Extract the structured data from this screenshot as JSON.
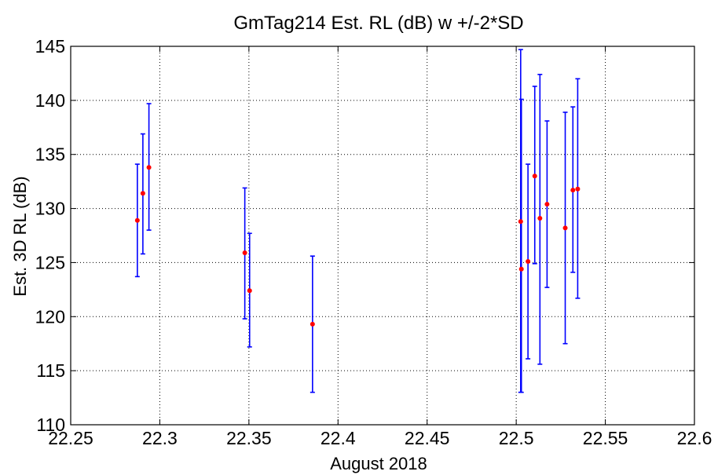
{
  "chart_data": {
    "type": "scatter",
    "title": "GmTag214 Est. RL (dB) w +/-2*SD",
    "xlabel": "August 2018",
    "ylabel": "Est. 3D RL (dB)",
    "xlim": [
      22.25,
      22.6
    ],
    "ylim": [
      110,
      145
    ],
    "x_ticks": [
      22.25,
      22.3,
      22.35,
      22.4,
      22.45,
      22.5,
      22.55,
      22.6
    ],
    "x_tick_labels": [
      "22.25",
      "22.3",
      "22.35",
      "22.4",
      "22.45",
      "22.5",
      "22.55",
      "22.6"
    ],
    "y_ticks": [
      110,
      115,
      120,
      125,
      130,
      135,
      140,
      145
    ],
    "y_tick_labels": [
      "110",
      "115",
      "120",
      "125",
      "130",
      "135",
      "140",
      "145"
    ],
    "grid": true,
    "series": [
      {
        "marker_color": "#ff0000",
        "errorbar_color": "#0000ff",
        "points": [
          {
            "x": 22.2874,
            "y": 128.9,
            "low": 123.7,
            "high": 134.1
          },
          {
            "x": 22.2905,
            "y": 131.4,
            "low": 125.8,
            "high": 136.9
          },
          {
            "x": 22.2939,
            "y": 133.8,
            "low": 128.0,
            "high": 139.7
          },
          {
            "x": 22.3477,
            "y": 125.9,
            "low": 119.8,
            "high": 131.9
          },
          {
            "x": 22.3504,
            "y": 122.4,
            "low": 117.2,
            "high": 127.7
          },
          {
            "x": 22.3857,
            "y": 119.3,
            "low": 113.0,
            "high": 125.6
          },
          {
            "x": 22.5025,
            "y": 128.8,
            "low": 113.0,
            "high": 144.7
          },
          {
            "x": 22.5029,
            "y": 124.4,
            "low": 113.0,
            "high": 140.1
          },
          {
            "x": 22.5066,
            "y": 125.1,
            "low": 116.1,
            "high": 134.1
          },
          {
            "x": 22.5104,
            "y": 133.0,
            "low": 124.9,
            "high": 141.3
          },
          {
            "x": 22.5133,
            "y": 129.1,
            "low": 115.6,
            "high": 142.4
          },
          {
            "x": 22.5173,
            "y": 130.4,
            "low": 122.7,
            "high": 138.1
          },
          {
            "x": 22.5275,
            "y": 128.2,
            "low": 117.5,
            "high": 138.9
          },
          {
            "x": 22.5318,
            "y": 131.7,
            "low": 124.1,
            "high": 139.4
          },
          {
            "x": 22.5345,
            "y": 131.8,
            "low": 121.7,
            "high": 142.0
          }
        ]
      }
    ]
  }
}
